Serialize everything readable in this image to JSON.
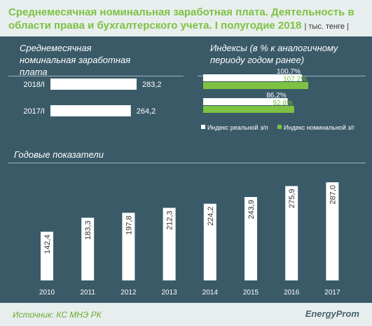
{
  "header": {
    "title": "Среднемесячная номинальная заработная плата. Деятельность в области права и бухгалтерского учета. I полугодие 2018",
    "unit": "| тыс. тенге |"
  },
  "panels": {
    "salary_title": "Среднемесячная  номинальная заработная плата",
    "index_title": "Индексы  (в % к аналогичному периоду годом ранее)",
    "annual_title": "Годовые показатели"
  },
  "footer": {
    "source": "Источник: КС МНЭ РК",
    "logo": "EnergyProm"
  },
  "colors": {
    "background": "#3a5a68",
    "bar_white": "#ffffff",
    "bar_green": "#7dc242",
    "title_green": "#7dc242"
  },
  "chart_data": [
    {
      "type": "bar",
      "orientation": "horizontal",
      "title": "Среднемесячная  номинальная заработная плата",
      "categories": [
        "2018/I",
        "2017/I"
      ],
      "values": [
        283.2,
        264.2
      ],
      "value_labels": [
        "283,2",
        "264,2"
      ]
    },
    {
      "type": "bar",
      "orientation": "horizontal",
      "title": "Индексы  (в % к аналогичному периоду годом ранее)",
      "categories": [
        "2018/I",
        "2017/I"
      ],
      "series": [
        {
          "name": "Индекс реальной з/п",
          "values": [
            100.7,
            86.2
          ],
          "labels": [
            "100,7%",
            "86,2%"
          ],
          "color": "#ffffff"
        },
        {
          "name": "Индекс номинальной з/г",
          "values": [
            107.2,
            92.8
          ],
          "labels": [
            "107,2%",
            "92,8%"
          ],
          "color": "#7dc242"
        }
      ],
      "legend": "bottom"
    },
    {
      "type": "bar",
      "title": "Годовые показатели",
      "categories": [
        "2010",
        "2011",
        "2012",
        "2013",
        "2014",
        "2015",
        "2016",
        "2017"
      ],
      "values": [
        142.4,
        183.3,
        197.8,
        212.3,
        224.2,
        243.9,
        275.9,
        287.0
      ],
      "value_labels": [
        "142,4",
        "183,3",
        "197,8",
        "212,3",
        "224,2",
        "243,9",
        "275,9",
        "287,0"
      ]
    }
  ]
}
